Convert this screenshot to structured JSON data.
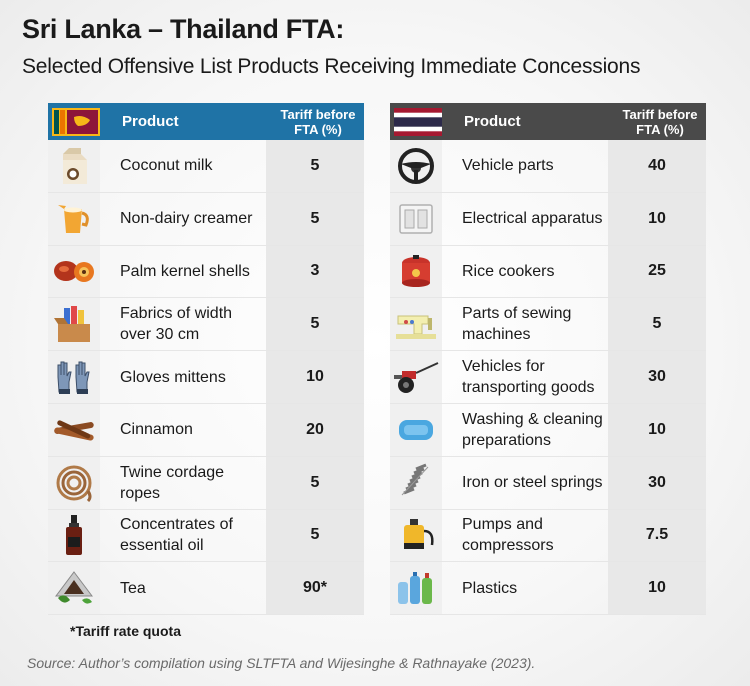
{
  "title": "Sri Lanka – Thailand FTA:",
  "subtitle": "Selected Offensive List Products Receiving Immediate Concessions",
  "left_table": {
    "flag_icon": "sri-lanka-flag",
    "header_product": "Product",
    "header_tariff": "Tariff before FTA (%)",
    "header_color": "#1f73a6",
    "rows": [
      {
        "icon": "coconut-milk-carton-icon",
        "product": "Coconut milk",
        "tariff": "5"
      },
      {
        "icon": "creamer-jug-icon",
        "product": "Non-dairy creamer",
        "tariff": "5"
      },
      {
        "icon": "palm-kernel-icon",
        "product": "Palm kernel shells",
        "tariff": "3"
      },
      {
        "icon": "fabric-box-icon",
        "product": "Fabrics of width over 30 cm",
        "tariff": "5"
      },
      {
        "icon": "gloves-icon",
        "product": "Gloves mittens",
        "tariff": "10"
      },
      {
        "icon": "cinnamon-sticks-icon",
        "product": "Cinnamon",
        "tariff": "20"
      },
      {
        "icon": "rope-coil-icon",
        "product": "Twine cordage ropes",
        "tariff": "5"
      },
      {
        "icon": "oil-bottle-icon",
        "product": "Concentrates of essential oil",
        "tariff": "5"
      },
      {
        "icon": "tea-bag-icon",
        "product": "Tea",
        "tariff": "90*"
      }
    ]
  },
  "right_table": {
    "flag_icon": "thailand-flag",
    "header_product": "Product",
    "header_tariff": "Tariff before FTA (%)",
    "header_color": "#4a4a4a",
    "rows": [
      {
        "icon": "steering-wheel-icon",
        "product": "Vehicle parts",
        "tariff": "40"
      },
      {
        "icon": "light-switch-icon",
        "product": "Electrical apparatus",
        "tariff": "10"
      },
      {
        "icon": "rice-cooker-icon",
        "product": "Rice cookers",
        "tariff": "25"
      },
      {
        "icon": "sewing-machine-icon",
        "product": "Parts of sewing machines",
        "tariff": "5"
      },
      {
        "icon": "two-wheel-tractor-icon",
        "product": "Vehicles for transporting goods",
        "tariff": "30"
      },
      {
        "icon": "soap-bar-icon",
        "product": "Washing & cleaning preparations",
        "tariff": "10"
      },
      {
        "icon": "coil-spring-icon",
        "product": "Iron or steel springs",
        "tariff": "30"
      },
      {
        "icon": "pump-icon",
        "product": "Pumps and compressors",
        "tariff": "7.5"
      },
      {
        "icon": "plastic-bottles-icon",
        "product": "Plastics",
        "tariff": "10"
      }
    ]
  },
  "footnote": "*Tariff rate quota",
  "source": "Source: Author’s compilation using SLTFTA and Wijesinghe & Rathnayake (2023)."
}
